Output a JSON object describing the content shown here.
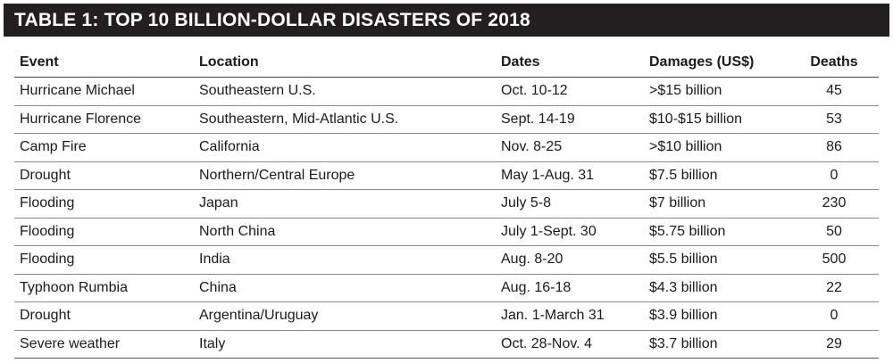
{
  "title": "TABLE 1:  TOP 10 BILLION-DOLLAR DISASTERS OF 2018",
  "columns": {
    "event": "Event",
    "location": "Location",
    "dates": "Dates",
    "damages": "Damages (US$)",
    "deaths": "Deaths"
  },
  "rows": [
    {
      "event": "Hurricane Michael",
      "location": "Southeastern U.S.",
      "dates": "Oct. 10-12",
      "damages": ">$15 billion",
      "deaths": "45"
    },
    {
      "event": "Hurricane Florence",
      "location": "Southeastern, Mid-Atlantic U.S.",
      "dates": "Sept. 14-19",
      "damages": "$10-$15 billion",
      "deaths": "53"
    },
    {
      "event": "Camp Fire",
      "location": "California",
      "dates": "Nov. 8-25",
      "damages": ">$10 billion",
      "deaths": "86"
    },
    {
      "event": "Drought",
      "location": "Northern/Central Europe",
      "dates": "May 1-Aug. 31",
      "damages": "$7.5 billion",
      "deaths": "0"
    },
    {
      "event": "Flooding",
      "location": "Japan",
      "dates": "July 5-8",
      "damages": "$7 billion",
      "deaths": "230"
    },
    {
      "event": "Flooding",
      "location": "North China",
      "dates": "July 1-Sept. 30",
      "damages": "$5.75 billion",
      "deaths": "50"
    },
    {
      "event": "Flooding",
      "location": "India",
      "dates": "Aug. 8-20",
      "damages": "$5.5 billion",
      "deaths": "500"
    },
    {
      "event": "Typhoon Rumbia",
      "location": "China",
      "dates": "Aug. 16-18",
      "damages": "$4.3 billion",
      "deaths": "22"
    },
    {
      "event": "Drought",
      "location": "Argentina/Uruguay",
      "dates": "Jan. 1-March 31",
      "damages": "$3.9 billion",
      "deaths": "0"
    },
    {
      "event": "Severe weather",
      "location": "Italy",
      "dates": "Oct. 28-Nov. 4",
      "damages": "$3.7 billion",
      "deaths": "29"
    }
  ]
}
